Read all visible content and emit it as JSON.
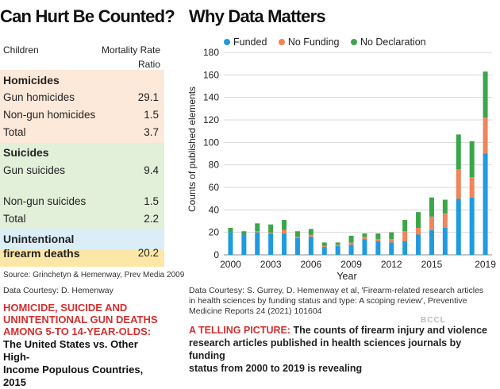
{
  "left": {
    "title": "Can Hurt Be Counted?",
    "col_children": "Children",
    "col_metric_1": "Mortality Rate",
    "col_metric_2": "Ratio",
    "sections": [
      {
        "heading": "Homicides",
        "color": "#fde9d9",
        "rows": [
          {
            "label": "Gun homicides",
            "value": "29.1"
          },
          {
            "label": "Non-gun homicides",
            "value": "1.5"
          },
          {
            "label": "Total",
            "value": "3.7"
          }
        ]
      },
      {
        "heading": "Suicides",
        "color": "#e2efd9",
        "rows": [
          {
            "label": "Gun suicides",
            "value": "9.4"
          },
          {
            "label": "Non-gun suicides",
            "value": "1.5"
          },
          {
            "label": "Total",
            "value": "2.2"
          }
        ]
      },
      {
        "heading_1": "Unintentional",
        "heading_2": "firearm deaths",
        "value": "20.2",
        "color": "#dbeef7",
        "total_color": "#fde7a6"
      }
    ],
    "source": "Source: Grinchetyn & Hemenway, Prev Media 2009",
    "courtesy": "Data Courtesy: D. Hemenway",
    "highlight_1": "HOMICIDE, SUICIDE AND",
    "highlight_2": "UNINTENTIONAL GUN DEATHS",
    "highlight_3": "AMONG 5-TO 14-YEAR-OLDS:",
    "sub_1": "The United States vs. Other High-",
    "sub_2": "Income Populous Countries, 2015"
  },
  "right": {
    "title": "Why Data Matters",
    "courtesy_1": "Data Courtesy: S. Gurrey, D. Hemenway et al, 'Firearm-related research articles",
    "courtesy_2": "in health sciences by funding status and type: A scoping review', Preventive",
    "courtesy_3": "Medicine Reports 24 (2021) 101604",
    "caption_lead": "A TELLING PICTURE:",
    "caption_1": " The counts of firearm injury and violence",
    "caption_2": "research articles published in health sciences journals by funding",
    "caption_3": "status from 2000 to 2019 is revealing",
    "watermark": "BCCL"
  },
  "chart_data": {
    "type": "bar",
    "stacked": true,
    "xlabel": "Year",
    "ylabel": "Counts of published elements",
    "ylim": [
      0,
      180
    ],
    "yticks": [
      0,
      20,
      40,
      60,
      80,
      100,
      120,
      140,
      160,
      180
    ],
    "xtick_labels": [
      "2000",
      "2003",
      "2006",
      "2009",
      "2012",
      "2015",
      "2019"
    ],
    "categories": [
      2000,
      2001,
      2002,
      2003,
      2004,
      2005,
      2006,
      2007,
      2008,
      2009,
      2010,
      2011,
      2012,
      2013,
      2014,
      2015,
      2016,
      2017,
      2018,
      2019
    ],
    "legend_position": "top",
    "grid": true,
    "series": [
      {
        "name": "Funded",
        "color": "#1f9be0",
        "values": [
          20,
          18,
          20,
          19,
          19,
          15,
          16,
          7,
          8,
          9,
          14,
          12,
          11,
          12,
          18,
          22,
          24,
          50,
          51,
          90
        ]
      },
      {
        "name": "No Funding",
        "color": "#f0845a",
        "values": [
          0,
          0,
          1,
          1,
          3,
          1,
          2,
          1,
          1,
          2,
          2,
          2,
          3,
          9,
          6,
          12,
          13,
          26,
          18,
          32
        ]
      },
      {
        "name": "No Declaration",
        "color": "#3aa64a",
        "values": [
          4,
          3,
          7,
          7,
          9,
          5,
          5,
          3,
          2,
          6,
          3,
          5,
          6,
          10,
          14,
          17,
          12,
          31,
          32,
          41
        ]
      }
    ]
  }
}
